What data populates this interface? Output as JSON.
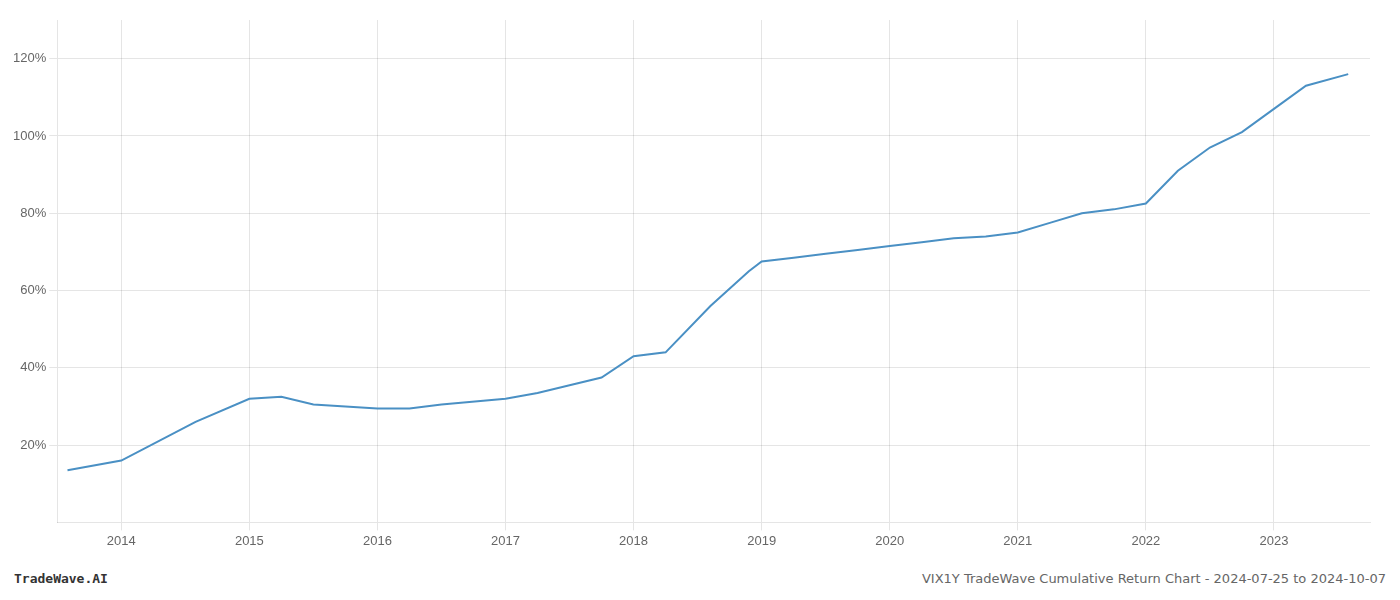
{
  "chart_data": {
    "type": "line",
    "title": "VIX1Y TradeWave Cumulative Return Chart - 2024-07-25 to 2024-10-07",
    "annotations": [
      "TradeWave.AI"
    ],
    "x": [
      2013.58,
      2014.0,
      2014.58,
      2015.0,
      2015.25,
      2015.5,
      2016.0,
      2016.25,
      2016.5,
      2017.0,
      2017.25,
      2017.5,
      2017.75,
      2018.0,
      2018.25,
      2018.6,
      2018.9,
      2019.0,
      2019.25,
      2019.5,
      2019.75,
      2020.0,
      2020.25,
      2020.5,
      2020.75,
      2021.0,
      2021.25,
      2021.5,
      2021.75,
      2022.0,
      2022.25,
      2022.5,
      2022.75,
      2023.0,
      2023.25,
      2023.58
    ],
    "values": [
      13.5,
      16.0,
      26.0,
      32.0,
      32.5,
      30.5,
      29.5,
      29.5,
      30.5,
      32.0,
      33.5,
      35.5,
      37.5,
      43.0,
      44.0,
      56.0,
      65.0,
      67.5,
      68.5,
      69.5,
      70.5,
      71.5,
      72.5,
      73.5,
      74.0,
      75.0,
      77.5,
      80.0,
      81.0,
      82.5,
      91.0,
      97.0,
      101.0,
      107.0,
      113.0,
      116.0
    ],
    "color": "#4a90c4",
    "xlim": [
      2013.5,
      2023.75
    ],
    "xticks": [
      2014,
      2015,
      2016,
      2017,
      2018,
      2019,
      2020,
      2021,
      2022,
      2023
    ],
    "ylim": [
      0,
      130
    ],
    "yticks": [
      {
        "value": 20,
        "label": "20%"
      },
      {
        "value": 40,
        "label": "40%"
      },
      {
        "value": 60,
        "label": "60%"
      },
      {
        "value": 80,
        "label": "80%"
      },
      {
        "value": 100,
        "label": "100%"
      },
      {
        "value": 120,
        "label": "120%"
      }
    ],
    "grid": true
  }
}
